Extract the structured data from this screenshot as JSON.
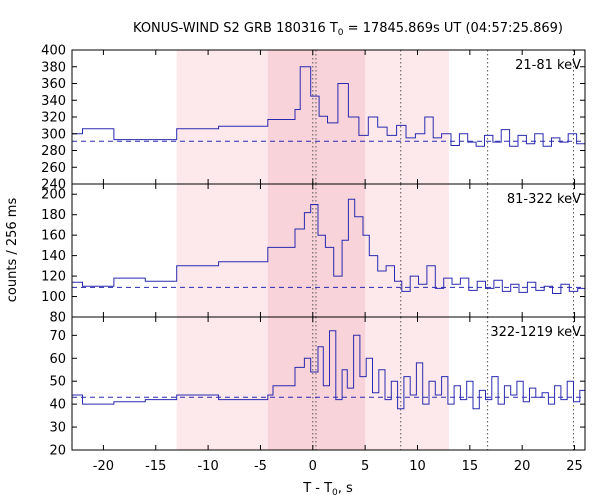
{
  "title": {
    "prefix": "KONUS-WIND S2 GRB 180316 T",
    "sub": "0",
    "suffix": " = 17845.869s UT (04:57:25.869)"
  },
  "xlabel": {
    "prefix": "T - T",
    "sub": "0",
    "suffix": ", s"
  },
  "ylabel": "counts / 256 ms",
  "colors": {
    "line": "#2a2ab0",
    "band_light": "#fde9ec",
    "band_dark": "#f9d3da",
    "marker": "#555555"
  },
  "chart_data": {
    "type": "line",
    "xlim": [
      -23,
      26
    ],
    "xticks": [
      -20,
      -15,
      -10,
      -5,
      0,
      5,
      10,
      15,
      20,
      25
    ],
    "shaded_regions": [
      {
        "from": -13,
        "to": 13,
        "tone": "light"
      },
      {
        "from": -4.3,
        "to": 5,
        "tone": "dark"
      }
    ],
    "vertical_markers": [
      0,
      0.3,
      8.4,
      16.7,
      24.9
    ],
    "panels": [
      {
        "band_label": "21-81 keV",
        "ylim": [
          240,
          400
        ],
        "yticks": [
          240,
          260,
          280,
          300,
          320,
          340,
          360,
          380,
          400
        ],
        "background": 291,
        "steps": [
          [
            -23,
            300
          ],
          [
            -22,
            306
          ],
          [
            -19,
            293
          ],
          [
            -16,
            293
          ],
          [
            -13,
            306
          ],
          [
            -9,
            309
          ],
          [
            -4.3,
            317
          ],
          [
            -1.7,
            329
          ],
          [
            -1.2,
            380
          ],
          [
            -0.2,
            345
          ],
          [
            0.6,
            321
          ],
          [
            1.4,
            313
          ],
          [
            2.4,
            360
          ],
          [
            3.4,
            320
          ],
          [
            4.4,
            298
          ],
          [
            5.3,
            320
          ],
          [
            6.2,
            308
          ],
          [
            7.1,
            298
          ],
          [
            8.0,
            310
          ],
          [
            8.9,
            295
          ],
          [
            9.8,
            300
          ],
          [
            10.7,
            320
          ],
          [
            11.5,
            295
          ],
          [
            12.3,
            300
          ],
          [
            13.2,
            286
          ],
          [
            14.0,
            300
          ],
          [
            14.8,
            290
          ],
          [
            15.6,
            285
          ],
          [
            16.4,
            298
          ],
          [
            17.2,
            290
          ],
          [
            18.0,
            305
          ],
          [
            18.8,
            285
          ],
          [
            19.6,
            298
          ],
          [
            20.4,
            288
          ],
          [
            21.2,
            300
          ],
          [
            22.0,
            285
          ],
          [
            22.8,
            295
          ],
          [
            23.6,
            290
          ],
          [
            24.4,
            300
          ],
          [
            25.2,
            288
          ],
          [
            26,
            288
          ]
        ]
      },
      {
        "band_label": "81-322 keV",
        "ylim": [
          80,
          210
        ],
        "yticks": [
          80,
          100,
          120,
          140,
          160,
          180,
          200
        ],
        "background": 109,
        "steps": [
          [
            -23,
            114
          ],
          [
            -22,
            110
          ],
          [
            -19,
            118
          ],
          [
            -16,
            115
          ],
          [
            -13,
            130
          ],
          [
            -9,
            134
          ],
          [
            -4.3,
            148
          ],
          [
            -1.7,
            166
          ],
          [
            -0.8,
            182
          ],
          [
            -0.2,
            190
          ],
          [
            0.5,
            160
          ],
          [
            1.2,
            148
          ],
          [
            2.0,
            120
          ],
          [
            2.8,
            155
          ],
          [
            3.4,
            195
          ],
          [
            4.0,
            178
          ],
          [
            4.8,
            160
          ],
          [
            5.4,
            140
          ],
          [
            6.2,
            125
          ],
          [
            7.0,
            130
          ],
          [
            7.8,
            115
          ],
          [
            8.5,
            105
          ],
          [
            9.3,
            120
          ],
          [
            10.1,
            112
          ],
          [
            10.9,
            130
          ],
          [
            11.7,
            108
          ],
          [
            12.5,
            118
          ],
          [
            13.3,
            112
          ],
          [
            14.1,
            118
          ],
          [
            14.9,
            106
          ],
          [
            15.7,
            115
          ],
          [
            16.5,
            108
          ],
          [
            17.3,
            116
          ],
          [
            18.1,
            105
          ],
          [
            18.9,
            112
          ],
          [
            19.7,
            104
          ],
          [
            20.5,
            114
          ],
          [
            21.3,
            106
          ],
          [
            22.1,
            110
          ],
          [
            22.9,
            103
          ],
          [
            23.7,
            112
          ],
          [
            24.5,
            105
          ],
          [
            25.3,
            108
          ],
          [
            26,
            108
          ]
        ]
      },
      {
        "band_label": "322-1219 keV",
        "ylim": [
          20,
          78
        ],
        "yticks": [
          20,
          30,
          40,
          50,
          60,
          70
        ],
        "background": 43,
        "steps": [
          [
            -23,
            44
          ],
          [
            -22,
            40
          ],
          [
            -19,
            41
          ],
          [
            -16,
            42
          ],
          [
            -13,
            44
          ],
          [
            -9,
            42
          ],
          [
            -4.3,
            44
          ],
          [
            -3.8,
            48
          ],
          [
            -1.7,
            56
          ],
          [
            -0.8,
            60
          ],
          [
            -0.2,
            54
          ],
          [
            0.5,
            65
          ],
          [
            1.0,
            48
          ],
          [
            1.6,
            72
          ],
          [
            2.2,
            42
          ],
          [
            2.8,
            55
          ],
          [
            3.3,
            47
          ],
          [
            3.9,
            70
          ],
          [
            4.5,
            52
          ],
          [
            5.1,
            60
          ],
          [
            5.7,
            45
          ],
          [
            6.3,
            55
          ],
          [
            6.9,
            42
          ],
          [
            7.5,
            50
          ],
          [
            8.1,
            38
          ],
          [
            8.7,
            52
          ],
          [
            9.3,
            44
          ],
          [
            9.9,
            58
          ],
          [
            10.5,
            40
          ],
          [
            11.1,
            50
          ],
          [
            11.7,
            44
          ],
          [
            12.3,
            52
          ],
          [
            12.9,
            40
          ],
          [
            13.5,
            48
          ],
          [
            14.1,
            42
          ],
          [
            14.7,
            50
          ],
          [
            15.3,
            38
          ],
          [
            15.9,
            46
          ],
          [
            16.5,
            42
          ],
          [
            17.1,
            52
          ],
          [
            17.7,
            40
          ],
          [
            18.3,
            48
          ],
          [
            18.9,
            44
          ],
          [
            19.5,
            50
          ],
          [
            20.1,
            41
          ],
          [
            20.7,
            47
          ],
          [
            21.3,
            43
          ],
          [
            21.9,
            45
          ],
          [
            22.5,
            40
          ],
          [
            23.1,
            48
          ],
          [
            23.7,
            42
          ],
          [
            24.3,
            50
          ],
          [
            24.9,
            41
          ],
          [
            25.5,
            46
          ],
          [
            26,
            46
          ]
        ]
      }
    ]
  }
}
